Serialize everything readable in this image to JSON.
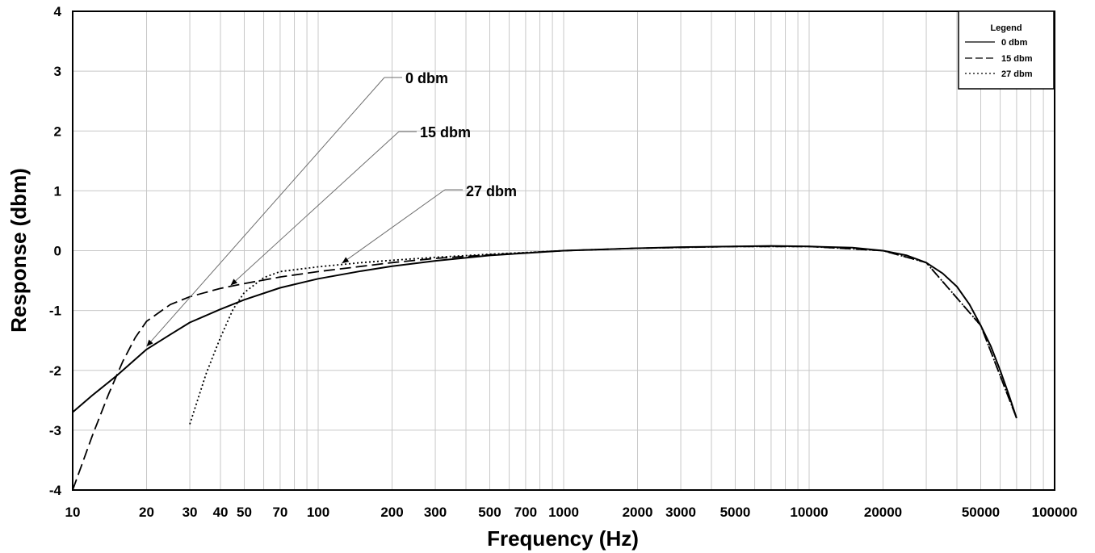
{
  "chart_data": {
    "type": "line",
    "xlabel": "Frequency (Hz)",
    "ylabel": "Response (dbm)",
    "x_scale": "log",
    "xlim": [
      10,
      100000
    ],
    "ylim": [
      -4,
      4
    ],
    "grid": true,
    "legend_position": "top-right",
    "x_ticks": [
      10,
      20,
      30,
      40,
      50,
      70,
      100,
      200,
      300,
      500,
      700,
      1000,
      2000,
      3000,
      5000,
      10000,
      20000,
      50000,
      100000
    ],
    "x_tick_labels": [
      "10",
      "20",
      "30",
      "40",
      "50",
      "70",
      "100",
      "200",
      "300",
      "500",
      "700",
      "1000",
      "2000",
      "3000",
      "5000",
      "10000",
      "20000",
      "50000",
      "100000"
    ],
    "y_ticks": [
      -4,
      -3,
      -2,
      -1,
      0,
      1,
      2,
      3,
      4
    ],
    "y_tick_labels": [
      "-4",
      "-3",
      "-2",
      "-1",
      "0",
      "1",
      "2",
      "3",
      "4"
    ],
    "legend": {
      "title": "Legend",
      "entries": [
        "0 dbm",
        "15 dbm",
        "27 dbm"
      ]
    },
    "series": [
      {
        "name": "0 dbm",
        "style": "solid",
        "x": [
          10,
          12,
          15,
          20,
          25,
          30,
          40,
          50,
          70,
          100,
          150,
          200,
          300,
          500,
          700,
          1000,
          2000,
          3000,
          5000,
          7000,
          10000,
          15000,
          20000,
          25000,
          30000,
          35000,
          40000,
          45000,
          50000,
          55000,
          60000,
          65000,
          70000
        ],
        "y": [
          -2.7,
          -2.42,
          -2.1,
          -1.65,
          -1.4,
          -1.2,
          -0.98,
          -0.82,
          -0.62,
          -0.47,
          -0.34,
          -0.26,
          -0.17,
          -0.08,
          -0.04,
          0.0,
          0.04,
          0.06,
          0.07,
          0.08,
          0.07,
          0.05,
          0.0,
          -0.08,
          -0.2,
          -0.38,
          -0.6,
          -0.9,
          -1.25,
          -1.6,
          -2.0,
          -2.4,
          -2.8
        ]
      },
      {
        "name": "15 dbm",
        "style": "dashed",
        "x": [
          10,
          12,
          14,
          16,
          18,
          20,
          25,
          30,
          40,
          50,
          70,
          100,
          200,
          300,
          500,
          1000,
          2000,
          5000,
          10000,
          20000,
          30000,
          50000,
          70000
        ],
        "y": [
          -4.0,
          -3.1,
          -2.4,
          -1.85,
          -1.45,
          -1.18,
          -0.9,
          -0.77,
          -0.63,
          -0.55,
          -0.44,
          -0.35,
          -0.2,
          -0.13,
          -0.07,
          0.0,
          0.04,
          0.07,
          0.07,
          0.0,
          -0.2,
          -1.25,
          -2.8
        ]
      },
      {
        "name": "27 dbm",
        "style": "dotted",
        "x": [
          30,
          35,
          40,
          45,
          50,
          60,
          70,
          100,
          150,
          200,
          300,
          500,
          1000,
          2000,
          5000,
          10000,
          20000,
          30000,
          50000,
          70000
        ],
        "y": [
          -2.9,
          -2.05,
          -1.45,
          -0.98,
          -0.7,
          -0.45,
          -0.35,
          -0.27,
          -0.2,
          -0.16,
          -0.11,
          -0.06,
          0.0,
          0.04,
          0.07,
          0.07,
          0.0,
          -0.2,
          -1.25,
          -2.8
        ]
      }
    ],
    "annotations": [
      {
        "text": "0 dbm",
        "target_x": 20,
        "target_y": -1.6
      },
      {
        "text": "15 dbm",
        "target_x": 44,
        "target_y": -0.58
      },
      {
        "text": "27 dbm",
        "target_x": 125,
        "target_y": -0.21
      }
    ]
  }
}
